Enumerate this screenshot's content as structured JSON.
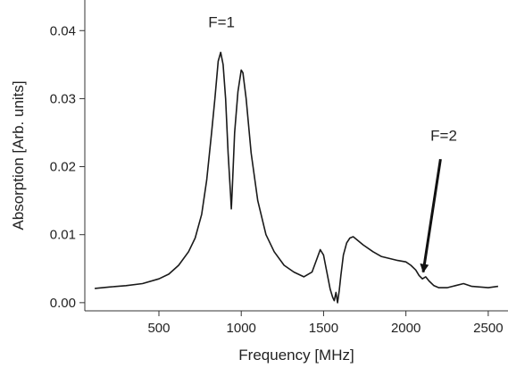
{
  "chart_data": {
    "type": "line",
    "xlabel": "Frequency [MHz]",
    "ylabel": "Absorption [Arb. units]",
    "xlim": [
      50,
      2620
    ],
    "ylim": [
      -0.0012,
      0.0445
    ],
    "xticks": [
      500,
      1000,
      1500,
      2000,
      2500
    ],
    "yticks": [
      0.0,
      0.01,
      0.02,
      0.03,
      0.04
    ],
    "xtick_labels": [
      "500",
      "1000",
      "1500",
      "2000",
      "2500"
    ],
    "ytick_labels": [
      "0.00",
      "0.01",
      "0.02",
      "0.03",
      "0.04"
    ],
    "grid": false,
    "line_color": "#1a1a1a",
    "series": [
      {
        "x": [
          110,
          200,
          300,
          400,
          500,
          560,
          620,
          680,
          720,
          760,
          790,
          820,
          840,
          860,
          875,
          890,
          905,
          920,
          935,
          940,
          945,
          960,
          980,
          1000,
          1010,
          1030,
          1060,
          1100,
          1150,
          1200,
          1260,
          1320,
          1380,
          1430,
          1460,
          1480,
          1500,
          1520,
          1540,
          1555,
          1565,
          1575,
          1585,
          1595,
          1605,
          1620,
          1640,
          1660,
          1680,
          1700,
          1740,
          1800,
          1850,
          1900,
          1950,
          2000,
          2030,
          2060,
          2080,
          2100,
          2120,
          2140,
          2170,
          2200,
          2250,
          2300,
          2350,
          2400,
          2450,
          2500,
          2560
        ],
        "y": [
          0.0021,
          0.0023,
          0.0025,
          0.0028,
          0.0035,
          0.0042,
          0.0055,
          0.0075,
          0.0095,
          0.013,
          0.018,
          0.025,
          0.03,
          0.0355,
          0.0368,
          0.035,
          0.03,
          0.022,
          0.016,
          0.0138,
          0.0165,
          0.025,
          0.031,
          0.0342,
          0.0338,
          0.03,
          0.022,
          0.015,
          0.01,
          0.0075,
          0.0055,
          0.0045,
          0.0038,
          0.0045,
          0.0065,
          0.0078,
          0.007,
          0.0045,
          0.002,
          0.0008,
          0.0003,
          0.0015,
          0.0,
          0.0018,
          0.004,
          0.007,
          0.0088,
          0.0095,
          0.0097,
          0.0093,
          0.0085,
          0.0075,
          0.0068,
          0.0065,
          0.0062,
          0.006,
          0.0055,
          0.0048,
          0.004,
          0.0035,
          0.0038,
          0.0032,
          0.0025,
          0.0022,
          0.0022,
          0.0025,
          0.0028,
          0.0024,
          0.0023,
          0.0022,
          0.0024
        ]
      }
    ],
    "annotations": [
      {
        "text": "F=1",
        "x": 880,
        "y": 0.0405
      },
      {
        "text": "F=2",
        "x": 2230,
        "y": 0.0238
      }
    ],
    "arrow": {
      "from": [
        2210,
        0.0211
      ],
      "to": [
        2105,
        0.0045
      ]
    }
  }
}
